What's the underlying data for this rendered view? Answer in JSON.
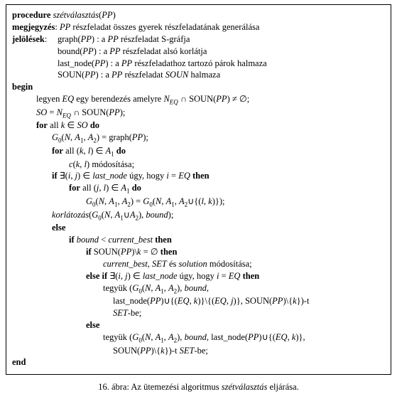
{
  "proc": {
    "kw_procedure": "procedure",
    "name": "szétválasztás",
    "arg": "PP"
  },
  "comment": {
    "kw": "megjegyzés",
    "colon": ": ",
    "text_pre": "PP",
    "text_post": " részfeladat összes gyerek részfeladatának generálása"
  },
  "jel": {
    "kw": "jelölések",
    "colon": ":",
    "l1_a": "graph(",
    "l1_b": "PP",
    "l1_c": ") : a ",
    "l1_d": "PP",
    "l1_e": " részfeladat S-gráfja",
    "l2_a": "bound(",
    "l2_b": "PP",
    "l2_c": ") : a ",
    "l2_d": "PP",
    "l2_e": " részfeladat alsó korlátja",
    "l3_a": "last_node(",
    "l3_b": "PP",
    "l3_c": ") : a ",
    "l3_d": "PP",
    "l3_e": " részfeladathoz tartozó párok halmaza",
    "l4_a": "SOUN(",
    "l4_b": "PP",
    "l4_c": ") : a ",
    "l4_d": "PP",
    "l4_e2": "SOUN",
    "l4_e1": " részfeladat ",
    "l4_e3": " halmaza"
  },
  "kw": {
    "begin": "begin",
    "for": "for",
    "all": "all",
    "do": "do",
    "if": "if",
    "then": "then",
    "else": "else",
    "else_if": "else if",
    "end": "end"
  },
  "body": {
    "l1a": "legyen ",
    "l1b": "EQ",
    "l1c": " egy berendezés amelyre ",
    "l1d": "N",
    "l1d_sub": "EQ",
    "l1e": " ∩ SOUN(",
    "l1f": "PP",
    "l1g": ") ≠ ∅;",
    "l2a": "SO",
    "l2b": " = ",
    "l2c": "N",
    "l2c_sub": "EQ",
    "l2d": " ∩ SOUN(",
    "l2e": "PP",
    "l2f": ");",
    "l3a": " ",
    "l3b": "k",
    "l3c": " ∈ ",
    "l3d": " ",
    "l3e": "SO",
    "l3f": " ",
    "l4a": "G",
    "l4a_sub": "0",
    "l4b": "(",
    "l4c": "N",
    "l4d": ", ",
    "l4e": "A",
    "l4e_sub": "1",
    "l4f": ", ",
    "l4g": "A",
    "l4g_sub": "2",
    "l4h": ") = graph(",
    "l4i": "PP",
    "l4j": ");",
    "l5a": " (",
    "l5b": "k",
    "l5c": ", ",
    "l5d": "l",
    "l5e": ") ∈ ",
    "l5f": "A",
    "l5f_sub": "1",
    "l5g": " ",
    "l6a": "c",
    "l6b": "(",
    "l6c": "k",
    "l6d": ", ",
    "l6e": "l",
    "l6f": ") módosítása;",
    "l7a": " ∃(",
    "l7b": "i",
    "l7c": ", ",
    "l7d": "j",
    "l7e": ") ∈  ",
    "l7f": "last_node",
    "l7g": " úgy, hogy ",
    "l7h": "i",
    "l7i": " = ",
    "l7j": "EQ",
    "l7k": " ",
    "l8a": " (",
    "l8b": "j",
    "l8c": ", ",
    "l8d": "l",
    "l8e": ") ∈ ",
    "l8f": "A",
    "l8f_sub": "1",
    "l8g": " ",
    "l9a": "G",
    "l9a_sub": "0",
    "l9b": "(",
    "l9c": "N",
    "l9d": ", ",
    "l9e": "A",
    "l9e_sub": "1",
    "l9f": ", ",
    "l9g": "A",
    "l9g_sub": "2",
    "l9h": ") = ",
    "l9i": "G",
    "l9i_sub": "0",
    "l9j": "(",
    "l9k": "N",
    "l9l": ", ",
    "l9m": "A",
    "l9m_sub": "1",
    "l9n": ", ",
    "l9o": "A",
    "l9o_sub": "2",
    "l9p": "∪{(",
    "l9q": "l",
    "l9r": ", ",
    "l9s": "k",
    "l9t": ")});",
    "l10a": "korlátozás",
    "l10b": "(",
    "l10c": "G",
    "l10c_sub": "0",
    "l10d": "(",
    "l10e": "N",
    "l10f": ", ",
    "l10g": "A",
    "l10g_sub": "1",
    "l10h": "∪",
    "l10i": "A",
    "l10i_sub": "2",
    "l10j": "), ",
    "l10k": "bound",
    "l10l": ");",
    "l12a": " ",
    "l12b": "bound",
    "l12c": " < ",
    "l12d": "current_best",
    "l12e": " ",
    "l13a": " SOUN(",
    "l13b": "PP",
    "l13c": ")\\",
    "l13d": "k",
    "l13e": " = ∅ ",
    "l14a": "current_best",
    "l14b": ", ",
    "l14c": "SET",
    "l14d": " és ",
    "l14e": "solution",
    "l14f": " módosítása;",
    "l15a": " ∃(",
    "l15b": "i",
    "l15c": ", ",
    "l15d": "j",
    "l15e": ") ∈  ",
    "l15f": "last_node",
    "l15g": " úgy, hogy ",
    "l15h": "i",
    "l15i": " = ",
    "l15j": "EQ",
    "l15k": " ",
    "l16a": "tegyük (",
    "l16b": "G",
    "l16b_sub": "0",
    "l16c": "(",
    "l16d": "N",
    "l16e": ", ",
    "l16f": "A",
    "l16f_sub": "1",
    "l16g": ", ",
    "l16h": "A",
    "l16h_sub": "2",
    "l16i": "), ",
    "l16j": "bound",
    "l16k": ",",
    "l17a": "last_node(",
    "l17b": "PP",
    "l17c": ")∪{(",
    "l17d": "EQ",
    "l17e": ", ",
    "l17f": "k",
    "l17g": ")}\\{(",
    "l17h": "EQ",
    "l17i": ", ",
    "l17j": "j",
    "l17k": ")}, SOUN(",
    "l17l": "PP",
    "l17m": ")\\{",
    "l17n": "k",
    "l17o": "})-t",
    "l18a": "SET",
    "l18b": "-be;",
    "l20a": "tegyük (",
    "l20b": "G",
    "l20b_sub": "0",
    "l20c": "(",
    "l20d": "N",
    "l20e": ", ",
    "l20f": "A",
    "l20f_sub": "1",
    "l20g": ", ",
    "l20h": "A",
    "l20h_sub": "2",
    "l20i": "), ",
    "l20j": "bound",
    "l20k": ", last_node(",
    "l20l": "PP",
    "l20m": ")∪{(",
    "l20n": "EQ",
    "l20o": ", ",
    "l20p": "k",
    "l20q": ")},",
    "l21a": "SOUN(",
    "l21b": "PP",
    "l21c": ")\\{",
    "l21d": "k",
    "l21e": "})-t ",
    "l21f": "SET",
    "l21g": "-be;"
  },
  "caption": {
    "a": "16. ábra: Az ütemezési algoritmus ",
    "b": "szétválasztás",
    "c": " eljárása."
  }
}
